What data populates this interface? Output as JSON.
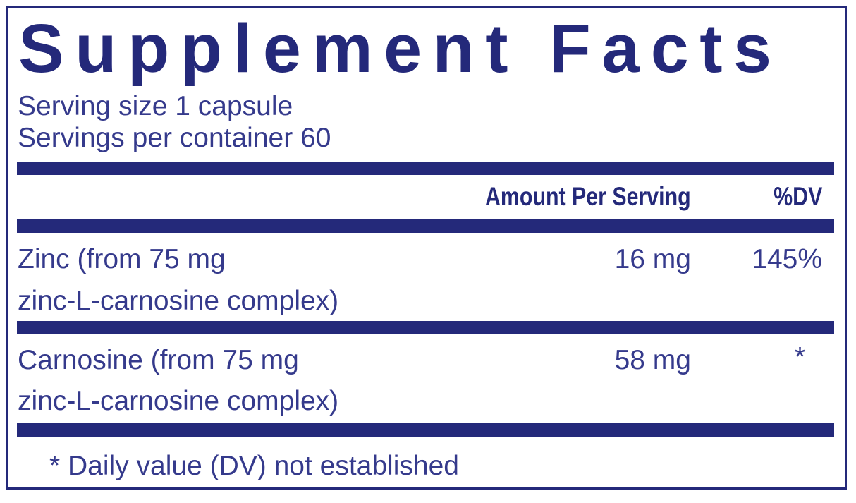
{
  "title": "Supplement Facts",
  "serving_size": "Serving size  1 capsule",
  "servings_per_container": "Servings per container  60",
  "header": {
    "amount": "Amount Per Serving",
    "dv": "%DV"
  },
  "rows": [
    {
      "name_line1": "Zinc (from 75 mg",
      "name_line2": "zinc-L-carnosine complex)",
      "amount": "16 mg",
      "dv": "145%"
    },
    {
      "name_line1": "Carnosine (from 75 mg",
      "name_line2": "zinc-L-carnosine complex)",
      "amount": "58 mg",
      "dv": "*"
    }
  ],
  "footnote": "* Daily value (DV) not established",
  "colors": {
    "border": "#24297a",
    "text": "#353a8c"
  }
}
